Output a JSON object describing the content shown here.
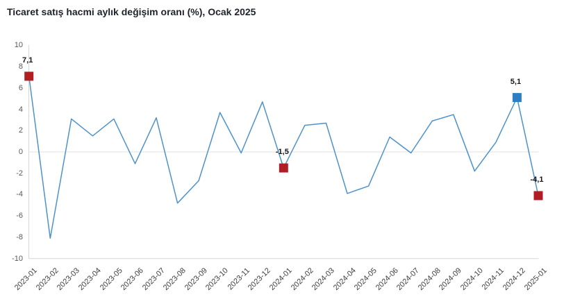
{
  "title": "Ticaret satış hacmi aylık değişim oranı (%), Ocak 2025",
  "chart_data": {
    "type": "line",
    "title": "Ticaret satış hacmi aylık değişim oranı (%), Ocak 2025",
    "xlabel": "",
    "ylabel": "",
    "ylim": [
      -10,
      10
    ],
    "y_ticks": [
      10,
      8,
      6,
      4,
      2,
      0,
      -2,
      -4,
      -6,
      -8,
      -10
    ],
    "grid": "zero-line-only",
    "legend": "none",
    "categories": [
      "2023-01",
      "2023-02",
      "2023-03",
      "2023-04",
      "2023-05",
      "2023-06",
      "2023-07",
      "2023-08",
      "2023-09",
      "2023-10",
      "2023-11",
      "2023-12",
      "2024-01",
      "2024-02",
      "2024-03",
      "2024-04",
      "2024-05",
      "2024-06",
      "2024-07",
      "2024-08",
      "2024-09",
      "2024-10",
      "2024-11",
      "2024-12",
      "2025-01"
    ],
    "values": [
      7.1,
      -8.1,
      3.1,
      1.5,
      3.1,
      -1.1,
      3.2,
      -4.8,
      -2.7,
      3.7,
      -0.1,
      4.7,
      -1.5,
      2.5,
      2.7,
      -3.9,
      -3.2,
      1.4,
      -0.1,
      2.9,
      3.5,
      -1.8,
      0.9,
      5.1,
      -4.1
    ],
    "annotations": [
      {
        "index": 0,
        "label": "7,1",
        "marker_color": "#b01e24"
      },
      {
        "index": 12,
        "label": "-1,5",
        "marker_color": "#b01e24"
      },
      {
        "index": 23,
        "label": "5,1",
        "marker_color": "#2e7fc2"
      },
      {
        "index": 24,
        "label": "-4,1",
        "marker_color": "#b01e24"
      }
    ]
  },
  "colors": {
    "line": "#4d92cb",
    "axis": "#d6d6d6",
    "zero_line": "#e0e0e0",
    "title_text": "#1e222b",
    "y_tick_text": "#595959",
    "x_tick_text": "#3f3f3f",
    "point_label_text": "#141414"
  }
}
